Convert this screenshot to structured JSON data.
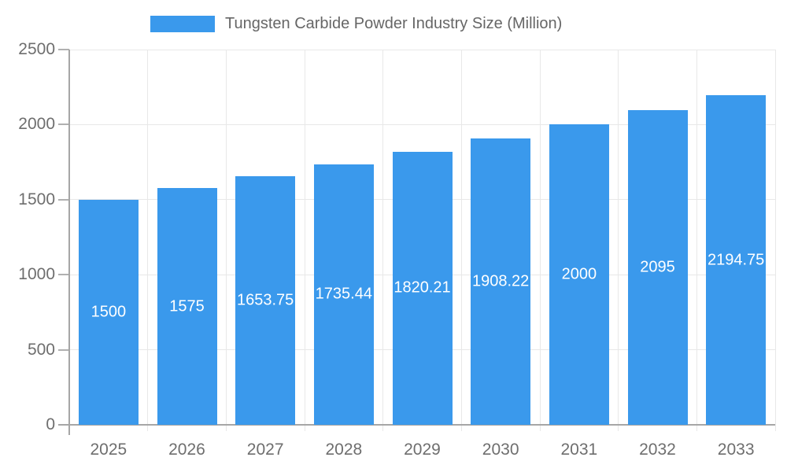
{
  "chart_data": {
    "type": "bar",
    "title": "Tungsten Carbide Powder Industry Size (Million)",
    "categories": [
      "2025",
      "2026",
      "2027",
      "2028",
      "2029",
      "2030",
      "2031",
      "2032",
      "2033"
    ],
    "values": [
      1500,
      1575,
      1653.75,
      1735.44,
      1820.21,
      1908.22,
      2000,
      2095,
      2194.75
    ],
    "xlabel": "",
    "ylabel": "",
    "ylim": [
      0,
      2500
    ],
    "y_ticks": [
      0,
      500,
      1000,
      1500,
      2000,
      2500
    ],
    "grid": true,
    "legend_position": "top",
    "value_labels": "inside-center-white"
  },
  "colors": {
    "bar": "#3A99EC",
    "value_label": "#FFFFFF",
    "legend_text": "#666666",
    "axis_text": "#6E6E6E",
    "grid_line": "#E8E8E8",
    "axis_line": "#A6A6A6",
    "tick_mark": "#B0B0B0"
  }
}
